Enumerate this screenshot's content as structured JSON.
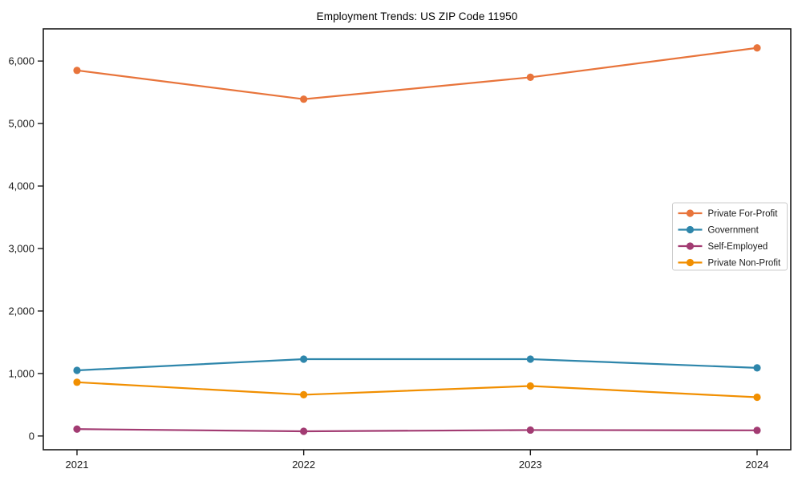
{
  "chart_data": {
    "type": "line",
    "title": "Employment Trends: US ZIP Code 11950",
    "x": [
      "2021",
      "2022",
      "2023",
      "2024"
    ],
    "xlabel": "",
    "ylabel": "",
    "ylim": [
      -220,
      6515
    ],
    "yticks": [
      0,
      1000,
      2000,
      3000,
      4000,
      5000,
      6000
    ],
    "ytick_labels": [
      "0",
      "1,000",
      "2,000",
      "3,000",
      "4,000",
      "5,000",
      "6,000"
    ],
    "grid": false,
    "legend_position": "center-right",
    "marker": "circle",
    "series": [
      {
        "name": "Private For-Profit",
        "color": "#E8743B",
        "values": [
          5850,
          5390,
          5740,
          6210
        ]
      },
      {
        "name": "Government",
        "color": "#2E86AB",
        "values": [
          1050,
          1230,
          1230,
          1090
        ]
      },
      {
        "name": "Self-Employed",
        "color": "#A23B72",
        "values": [
          110,
          75,
          95,
          90
        ]
      },
      {
        "name": "Private Non-Profit",
        "color": "#F18F01",
        "values": [
          860,
          660,
          800,
          620
        ]
      }
    ]
  },
  "frame": {
    "background": "#ffffff",
    "spine_color": "#1a1a1a",
    "text_color": "#1a1a1a",
    "legend_border_color": "#cccccc"
  }
}
